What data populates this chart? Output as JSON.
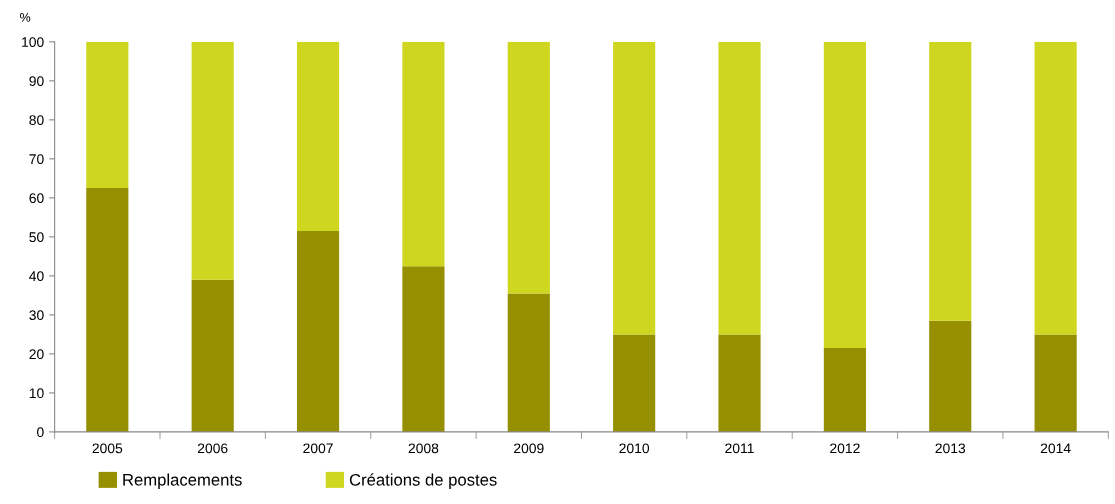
{
  "chart_data": {
    "type": "bar",
    "stacked": true,
    "ylabel": "%",
    "categories": [
      "2005",
      "2006",
      "2007",
      "2008",
      "2009",
      "2010",
      "2011",
      "2012",
      "2013",
      "2014"
    ],
    "series": [
      {
        "name": "Remplacements",
        "color": "#968f00",
        "values": [
          62.5,
          39,
          51.5,
          42.5,
          35.5,
          25,
          25,
          21.5,
          28.5,
          25
        ]
      },
      {
        "name": "Créations de postes",
        "color": "#cfd61f",
        "values": [
          37.5,
          61,
          48.5,
          57.5,
          64.5,
          75,
          75,
          78.5,
          71.5,
          75
        ]
      }
    ],
    "ylim": [
      0,
      100
    ],
    "yticks": [
      0,
      10,
      20,
      30,
      40,
      50,
      60,
      70,
      80,
      90,
      100
    ],
    "grid": false,
    "legend": "bottom left"
  }
}
